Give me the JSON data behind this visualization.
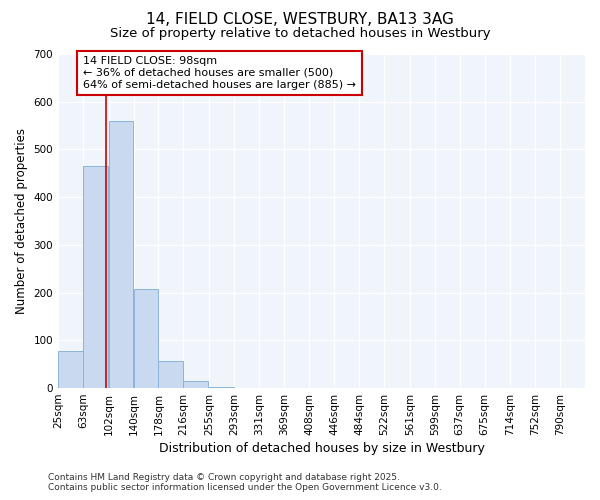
{
  "title": "14, FIELD CLOSE, WESTBURY, BA13 3AG",
  "subtitle": "Size of property relative to detached houses in Westbury",
  "xlabel": "Distribution of detached houses by size in Westbury",
  "ylabel": "Number of detached properties",
  "footer_line1": "Contains HM Land Registry data © Crown copyright and database right 2025.",
  "footer_line2": "Contains public sector information licensed under the Open Government Licence v3.0.",
  "bins": [
    25,
    63,
    102,
    140,
    178,
    216,
    255,
    293,
    331,
    369,
    408,
    446,
    484,
    522,
    561,
    599,
    637,
    675,
    714,
    752,
    790
  ],
  "counts": [
    78,
    465,
    560,
    207,
    57,
    15,
    3,
    0,
    0,
    0,
    0,
    0,
    0,
    0,
    0,
    0,
    0,
    0,
    0,
    0
  ],
  "bar_color": "#c9daf0",
  "bar_edge_color": "#8ab4d8",
  "bg_color": "#ffffff",
  "plot_bg_color": "#f0f5fc",
  "grid_color": "#ffffff",
  "vline_x": 98,
  "vline_color": "#cc0000",
  "annotation_text": "14 FIELD CLOSE: 98sqm\n← 36% of detached houses are smaller (500)\n64% of semi-detached houses are larger (885) →",
  "annotation_box_color": "#ffffff",
  "annotation_box_edge": "#cc0000",
  "ylim": [
    0,
    700
  ],
  "yticks": [
    0,
    100,
    200,
    300,
    400,
    500,
    600,
    700
  ],
  "title_fontsize": 11,
  "subtitle_fontsize": 9.5,
  "xlabel_fontsize": 9,
  "ylabel_fontsize": 8.5,
  "tick_fontsize": 7.5,
  "annotation_fontsize": 8,
  "footer_fontsize": 6.5
}
